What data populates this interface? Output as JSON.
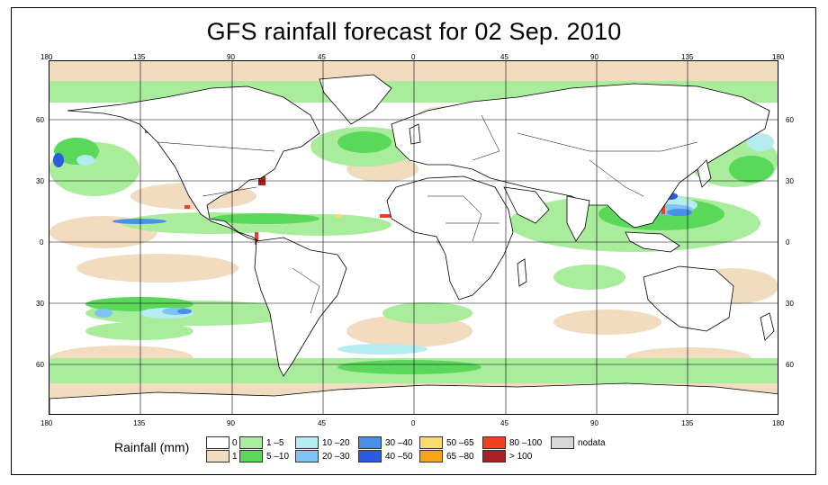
{
  "title": "GFS rainfall forecast for 02 Sep. 2010",
  "lon_ticks": [
    "180",
    "135",
    "90",
    "45",
    "0",
    "45",
    "90",
    "135",
    "180"
  ],
  "lat_ticks": [
    "60",
    "30",
    "0",
    "30",
    "60"
  ],
  "legend": {
    "title": "Rainfall (mm)",
    "items": [
      {
        "label": "0",
        "color": "#ffffff"
      },
      {
        "label": "1",
        "color": "#f2dcc0"
      },
      {
        "label": "1 –5",
        "color": "#a8ec9c"
      },
      {
        "label": "5 –10",
        "color": "#5ad85a"
      },
      {
        "label": "10 –20",
        "color": "#b4ecf2"
      },
      {
        "label": "20 –30",
        "color": "#7ec4f4"
      },
      {
        "label": "30 –40",
        "color": "#4a8ee8"
      },
      {
        "label": "40 –50",
        "color": "#2a5ce0"
      },
      {
        "label": "50 –65",
        "color": "#f8dc70"
      },
      {
        "label": "65 –80",
        "color": "#f8a418"
      },
      {
        "label": "80 –100",
        "color": "#f04020"
      },
      {
        "label": "> 100",
        "color": "#a82020"
      },
      {
        "label": "nodata",
        "color": "#d8d8d8"
      }
    ]
  }
}
